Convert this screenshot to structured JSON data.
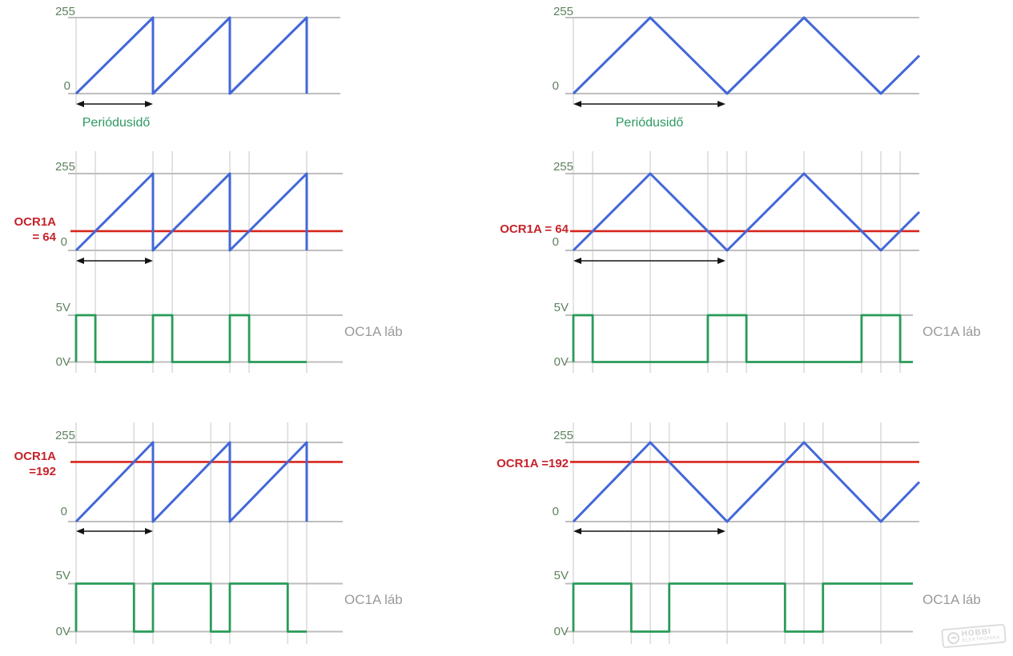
{
  "colors": {
    "counter_wave": "#4267D8",
    "ocr_line": "#D8251C",
    "ocr_label": "#C5232B",
    "pwm_trace": "#289B58",
    "axis_label": "#5F815F",
    "period_label": "#2E9964",
    "output_label": "#9A9A9A",
    "grid_line": "#DCDCDC",
    "level_line": "#BEBEBE"
  },
  "watermark": {
    "brand": "HOBBI",
    "subtitle": "ELEKTRONIKA"
  },
  "chart_data": [
    {
      "id": "fast-pwm-counter",
      "position": "top-left",
      "type": "line",
      "wave": "sawtooth",
      "y_range": [
        0,
        255
      ],
      "periods_shown": 3,
      "y_max_label": "255",
      "y_zero_label": "0",
      "period_label": "Periódusidő",
      "grid": "off",
      "series": [
        {
          "name": "timer-counter",
          "shape": "ramp 0 to 255 then instant reset"
        }
      ]
    },
    {
      "id": "phase-correct-counter",
      "position": "top-right",
      "type": "line",
      "wave": "triangle",
      "y_range": [
        0,
        255
      ],
      "periods_shown": 2.5,
      "y_max_label": "255",
      "y_zero_label": "0",
      "period_label": "Periódusidő",
      "grid": "off",
      "series": [
        {
          "name": "timer-counter",
          "shape": "triangle 0 to 255 to 0"
        }
      ]
    },
    {
      "id": "fast-pwm-ocr64",
      "position": "middle-left",
      "type": "line",
      "wave": "sawtooth",
      "y_range": [
        0,
        255
      ],
      "periods_shown": 3,
      "y_max_label": "255",
      "y_zero_label": "0",
      "grid": "on",
      "ocr1a": 64,
      "ocr_label_line1": "OCR1A",
      "ocr_label_line2": "= 64",
      "pwm": {
        "high_label": "5V",
        "low_label": "0V",
        "output_label": "OC1A láb",
        "duty_percent": 25
      }
    },
    {
      "id": "phase-correct-ocr64",
      "position": "middle-right",
      "type": "line",
      "wave": "triangle",
      "y_range": [
        0,
        255
      ],
      "periods_shown": 2.5,
      "y_max_label": "255",
      "y_zero_label": "0",
      "grid": "on",
      "ocr1a": 64,
      "ocr_label": "OCR1A = 64",
      "pwm": {
        "high_label": "5V",
        "low_label": "0V",
        "output_label": "OC1A láb",
        "duty_percent": 25
      }
    },
    {
      "id": "fast-pwm-ocr192",
      "position": "bottom-left",
      "type": "line",
      "wave": "sawtooth",
      "y_range": [
        0,
        255
      ],
      "periods_shown": 3,
      "y_max_label": "255",
      "y_zero_label": "0",
      "grid": "on",
      "ocr1a": 192,
      "ocr_label_line1": "OCR1A",
      "ocr_label_line2": "=192",
      "pwm": {
        "high_label": "5V",
        "low_label": "0V",
        "output_label": "OC1A láb",
        "duty_percent": 75
      }
    },
    {
      "id": "phase-correct-ocr192",
      "position": "bottom-right",
      "type": "line",
      "wave": "triangle",
      "y_range": [
        0,
        255
      ],
      "periods_shown": 2.5,
      "y_max_label": "255",
      "y_zero_label": "0",
      "grid": "on",
      "ocr1a": 192,
      "ocr_label": "OCR1A =192",
      "pwm": {
        "high_label": "5V",
        "low_label": "0V",
        "output_label": "OC1A láb",
        "duty_percent": 75
      }
    }
  ]
}
